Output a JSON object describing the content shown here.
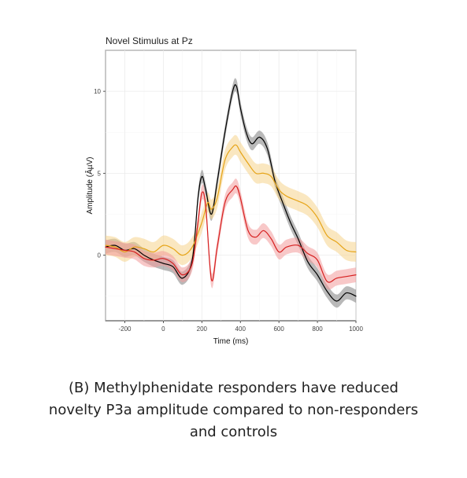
{
  "chart_data": {
    "type": "line",
    "title": "Novel Stimulus at Pz",
    "xlabel": "Time (ms)",
    "ylabel": "Amplitude (ÂµV)",
    "xlim": [
      -300,
      1000
    ],
    "ylim": [
      -4,
      12.5
    ],
    "x_ticks": [
      -200,
      0,
      200,
      400,
      600,
      800,
      1000
    ],
    "y_ticks": [
      0,
      5,
      10
    ],
    "grid": true,
    "series": [
      {
        "color": "#000000",
        "band_color": "#7f7f7f",
        "x": [
          -300,
          -250,
          -200,
          -150,
          -100,
          -50,
          0,
          50,
          100,
          150,
          180,
          200,
          220,
          250,
          280,
          320,
          360,
          380,
          400,
          430,
          460,
          500,
          540,
          580,
          620,
          660,
          700,
          750,
          800,
          850,
          900,
          950,
          1000
        ],
        "y": [
          0.5,
          0.6,
          0.3,
          0.4,
          0.0,
          -0.3,
          -0.5,
          -0.7,
          -1.4,
          -0.3,
          3.5,
          4.8,
          4.0,
          2.5,
          4.5,
          7.5,
          10.0,
          10.3,
          9.0,
          7.5,
          6.8,
          7.2,
          6.5,
          4.5,
          3.2,
          2.0,
          1.0,
          -0.4,
          -1.2,
          -2.2,
          -2.8,
          -2.3,
          -2.5
        ],
        "ci": 0.4
      },
      {
        "color": "#e6a417",
        "band_color": "#f6d48d",
        "x": [
          -300,
          -250,
          -200,
          -150,
          -100,
          -50,
          0,
          50,
          100,
          150,
          200,
          230,
          250,
          280,
          320,
          360,
          380,
          400,
          440,
          480,
          520,
          560,
          600,
          640,
          700,
          750,
          800,
          850,
          900,
          950,
          1000
        ],
        "y": [
          0.6,
          0.5,
          0.2,
          0.5,
          0.4,
          0.2,
          0.6,
          0.4,
          0.0,
          0.5,
          2.0,
          3.2,
          2.8,
          3.5,
          5.8,
          6.6,
          6.7,
          6.3,
          5.6,
          5.0,
          5.0,
          4.8,
          4.0,
          3.6,
          3.3,
          3.0,
          2.3,
          1.2,
          0.8,
          0.3,
          0.2
        ],
        "ci": 0.6
      },
      {
        "color": "#d61f1f",
        "band_color": "#f39a9a",
        "x": [
          -300,
          -250,
          -200,
          -150,
          -100,
          -50,
          0,
          50,
          100,
          150,
          180,
          200,
          220,
          250,
          280,
          320,
          360,
          380,
          400,
          440,
          480,
          520,
          560,
          600,
          640,
          700,
          750,
          800,
          850,
          900,
          950,
          1000
        ],
        "y": [
          0.5,
          0.4,
          0.3,
          0.2,
          -0.2,
          -0.3,
          -0.2,
          -0.5,
          -1.2,
          -0.5,
          2.0,
          3.8,
          3.0,
          -1.5,
          0.5,
          3.2,
          4.0,
          4.2,
          3.5,
          1.5,
          1.1,
          1.5,
          1.0,
          0.2,
          0.5,
          0.6,
          0.1,
          -0.3,
          -1.6,
          -1.4,
          -1.3,
          -1.2
        ],
        "ci": 0.45
      }
    ]
  },
  "caption": {
    "line1": "(B) Methylphenidate responders have reduced",
    "line2": "novelty P3a amplitude compared to non-responders",
    "line3": "and controls"
  }
}
